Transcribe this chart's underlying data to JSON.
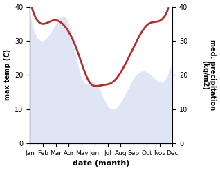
{
  "months": [
    "Jan",
    "Feb",
    "Mar",
    "Apr",
    "May",
    "Jun",
    "Jul",
    "Aug",
    "Sep",
    "Oct",
    "Nov",
    "Dec"
  ],
  "month_x": [
    0,
    1,
    2,
    3,
    4,
    5,
    6,
    7,
    8,
    9,
    10,
    11
  ],
  "temperature": [
    38,
    30,
    35,
    35,
    19,
    18,
    11,
    12,
    19,
    21,
    18,
    25
  ],
  "precipitation": [
    42,
    35,
    36,
    34,
    27,
    18,
    17,
    18,
    23,
    30,
    35,
    36,
    44
  ],
  "precip_x": [
    0,
    1,
    2,
    3,
    4,
    5,
    6,
    7,
    8,
    9,
    10,
    11,
    12
  ],
  "precip_color": "#b03030",
  "temp_fill_color": "#c8d0f0",
  "temp_line_color": "#b0b8e8",
  "ylim": [
    0,
    40
  ],
  "ylabel_left": "max temp (C)",
  "ylabel_right": "med. precipitation\n(kg/m2)",
  "xlabel": "date (month)",
  "yticks": [
    0,
    10,
    20,
    30,
    40
  ]
}
